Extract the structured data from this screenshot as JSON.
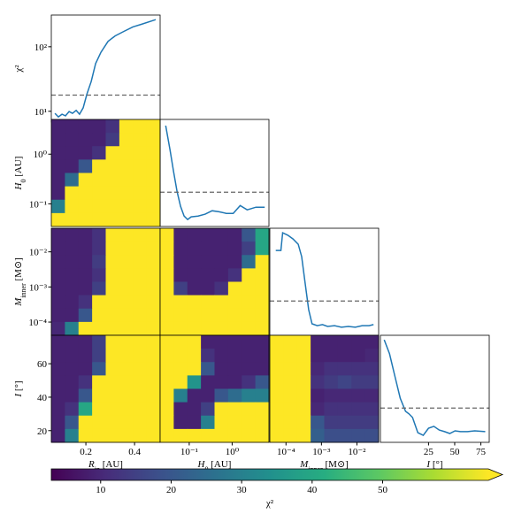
{
  "chart_data": [
    {
      "type": "line",
      "color": "#1f77b4",
      "x": [
        0.073,
        0.087,
        0.102,
        0.116,
        0.131,
        0.145,
        0.16,
        0.174,
        0.189,
        0.204,
        0.222,
        0.24,
        0.262,
        0.291,
        0.32,
        0.356,
        0.393,
        0.429,
        0.487
      ],
      "values": [
        9.3,
        8.2,
        9.0,
        8.5,
        9.9,
        9.3,
        10.3,
        9.0,
        11.3,
        18.4,
        29,
        55,
        82,
        121,
        147,
        173,
        203,
        223,
        263
      ],
      "threshold": 17.8,
      "xlim": [
        0.058,
        0.505
      ],
      "ylim": [
        6.8,
        310
      ],
      "ylog": true,
      "yticks": [
        {
          "value": 10,
          "label": "10¹"
        },
        {
          "value": 100,
          "label": "10²"
        }
      ],
      "ylabel": "χ²"
    },
    {
      "type": "heatmap",
      "xlim": [
        0.058,
        0.505
      ],
      "ylim": [
        0.035,
        5
      ],
      "ylog": true,
      "yticks": [
        {
          "value": 0.1,
          "label": "10⁻¹"
        },
        {
          "value": 1,
          "label": "10⁰"
        }
      ],
      "ylabel": {
        "base": "H",
        "sub": "0",
        "unit": " [AU]"
      },
      "z": [
        [
          9,
          9,
          9,
          9,
          12,
          70,
          70,
          70
        ],
        [
          9,
          9,
          9,
          9,
          14,
          70,
          70,
          70
        ],
        [
          9,
          9,
          9,
          12,
          70,
          70,
          70,
          70
        ],
        [
          9,
          9,
          20,
          70,
          70,
          70,
          70,
          70
        ],
        [
          9,
          25,
          70,
          70,
          70,
          70,
          70,
          70
        ],
        [
          9,
          70,
          70,
          70,
          70,
          70,
          70,
          70
        ],
        [
          30,
          70,
          70,
          70,
          70,
          70,
          70,
          70
        ],
        [
          70,
          70,
          70,
          70,
          70,
          70,
          70,
          70
        ]
      ]
    },
    {
      "type": "line",
      "color": "#1f77b4",
      "x": [
        0.0283,
        0.0358,
        0.0432,
        0.0522,
        0.063,
        0.076,
        0.0918,
        0.111,
        0.161,
        0.235,
        0.342,
        0.498,
        0.726,
        1.06,
        1.54,
        2.24,
        3.58,
        5.74
      ],
      "values": [
        42.7,
        33.6,
        25.5,
        18.0,
        12.5,
        8.9,
        7.6,
        8.6,
        8.9,
        9.6,
        10.9,
        10.5,
        9.9,
        9.9,
        12.8,
        11.2,
        12.2,
        12.2
      ],
      "threshold": 17.8,
      "xlim": [
        0.021,
        7.2
      ],
      "xlog": true,
      "ylim": [
        5,
        45
      ]
    },
    {
      "type": "heatmap",
      "xlim": [
        0.058,
        0.505
      ],
      "ylim": [
        4.2e-05,
        0.047
      ],
      "ylog": true,
      "yticks": [
        {
          "value": 0.0001,
          "label": "10⁻⁴"
        },
        {
          "value": 0.001,
          "label": "10⁻³"
        },
        {
          "value": 0.01,
          "label": "10⁻²"
        }
      ],
      "ylabel": {
        "base": "M",
        "sub": "inner",
        "unit": " [M⊙]"
      },
      "z": [
        [
          9,
          9,
          9,
          12,
          70,
          70,
          70,
          70
        ],
        [
          9,
          9,
          9,
          12,
          70,
          70,
          70,
          70
        ],
        [
          9,
          9,
          9,
          14,
          70,
          70,
          70,
          70
        ],
        [
          9,
          9,
          9,
          12,
          70,
          70,
          70,
          70
        ],
        [
          9,
          9,
          9,
          15,
          70,
          70,
          70,
          70
        ],
        [
          9,
          9,
          12,
          70,
          70,
          70,
          70,
          70
        ],
        [
          9,
          9,
          20,
          70,
          70,
          70,
          70,
          70
        ],
        [
          10,
          30,
          70,
          70,
          70,
          70,
          70,
          70
        ]
      ]
    },
    {
      "type": "heatmap",
      "xlim": [
        0.021,
        7.2
      ],
      "xlog": true,
      "ylim": [
        4.2e-05,
        0.047
      ],
      "ylog": true,
      "z": [
        [
          70,
          9,
          9,
          9,
          9,
          9,
          20,
          40
        ],
        [
          70,
          9,
          9,
          9,
          9,
          9,
          15,
          40
        ],
        [
          70,
          9,
          9,
          9,
          9,
          9,
          25,
          70
        ],
        [
          70,
          9,
          9,
          9,
          9,
          12,
          70,
          70
        ],
        [
          70,
          15,
          9,
          9,
          12,
          70,
          70,
          70
        ],
        [
          70,
          70,
          70,
          70,
          70,
          70,
          70,
          70
        ],
        [
          70,
          70,
          70,
          70,
          70,
          70,
          70,
          70
        ],
        [
          70,
          70,
          70,
          70,
          70,
          70,
          70,
          70
        ]
      ]
    },
    {
      "type": "line",
      "color": "#1f77b4",
      "x": [
        5.14e-05,
        7.19e-05,
        8.05e-05,
        0.000113,
        0.000158,
        0.000221,
        0.000277,
        0.000347,
        0.000435,
        0.000543,
        0.00076,
        0.00107,
        0.00149,
        0.00234,
        0.00366,
        0.00575,
        0.00902,
        0.0141,
        0.0221,
        0.0293
      ],
      "values": [
        36.7,
        36.7,
        43.3,
        42.4,
        41.0,
        39.0,
        34.4,
        24.5,
        14.6,
        9.3,
        8.6,
        9.0,
        8.3,
        8.6,
        8.0,
        8.3,
        8.0,
        8.6,
        8.6,
        9.0
      ],
      "threshold": 17.8,
      "xlim": [
        3.5e-05,
        0.041
      ],
      "xlog": true,
      "ylim": [
        5,
        45
      ]
    },
    {
      "type": "heatmap",
      "xlim": [
        0.058,
        0.505
      ],
      "ylim": [
        13,
        77
      ],
      "xticks": [
        0.2,
        0.4
      ],
      "xlabel": {
        "base": "R",
        "sub": "in",
        "unit": " [AU]"
      },
      "yticks": [
        20,
        40,
        60
      ],
      "ylabel": {
        "base": "I",
        "sub": "",
        "unit": " [°]"
      },
      "z": [
        [
          9,
          9,
          9,
          15,
          70,
          70,
          70,
          70
        ],
        [
          9,
          9,
          9,
          15,
          70,
          70,
          70,
          70
        ],
        [
          9,
          9,
          9,
          20,
          70,
          70,
          70,
          70
        ],
        [
          9,
          9,
          12,
          70,
          70,
          70,
          70,
          70
        ],
        [
          9,
          9,
          20,
          70,
          70,
          70,
          70,
          70
        ],
        [
          9,
          12,
          40,
          70,
          70,
          70,
          70,
          70
        ],
        [
          9,
          20,
          70,
          70,
          70,
          70,
          70,
          70
        ],
        [
          9,
          30,
          70,
          70,
          70,
          70,
          70,
          70
        ]
      ]
    },
    {
      "type": "heatmap",
      "xlim": [
        0.021,
        7.2
      ],
      "xlog": true,
      "ylim": [
        13,
        77
      ],
      "xticks": [
        {
          "value": 0.1,
          "label": "10⁻¹"
        },
        {
          "value": 1,
          "label": "10⁰"
        }
      ],
      "xlabel": {
        "base": "H",
        "sub": "0",
        "unit": " [AU]"
      },
      "z": [
        [
          70,
          70,
          70,
          9,
          9,
          9,
          9,
          9
        ],
        [
          70,
          70,
          70,
          12,
          9,
          9,
          9,
          9
        ],
        [
          70,
          70,
          70,
          20,
          9,
          9,
          9,
          9
        ],
        [
          70,
          70,
          35,
          9,
          9,
          9,
          12,
          20
        ],
        [
          70,
          30,
          9,
          9,
          20,
          25,
          30,
          30
        ],
        [
          70,
          9,
          9,
          15,
          70,
          70,
          70,
          70
        ],
        [
          70,
          9,
          9,
          30,
          70,
          70,
          70,
          70
        ],
        [
          70,
          70,
          70,
          70,
          70,
          70,
          70,
          70
        ]
      ]
    },
    {
      "type": "heatmap",
      "xlim": [
        3.5e-05,
        0.041
      ],
      "xlog": true,
      "ylim": [
        13,
        77
      ],
      "xticks": [
        {
          "value": 0.0001,
          "label": "10⁻⁴"
        },
        {
          "value": 0.001,
          "label": "10⁻³"
        },
        {
          "value": 0.01,
          "label": "10⁻²"
        }
      ],
      "xlabel": {
        "base": "M",
        "sub": "inner",
        "unit": " [M⊙]"
      },
      "z": [
        [
          70,
          70,
          70,
          9,
          9,
          9,
          9,
          9
        ],
        [
          70,
          70,
          70,
          9,
          9,
          9,
          9,
          10
        ],
        [
          70,
          70,
          70,
          10,
          12,
          12,
          12,
          12
        ],
        [
          70,
          70,
          70,
          12,
          14,
          16,
          14,
          14
        ],
        [
          70,
          70,
          70,
          9,
          10,
          10,
          10,
          10
        ],
        [
          70,
          70,
          70,
          10,
          12,
          12,
          12,
          12
        ],
        [
          70,
          70,
          70,
          20,
          14,
          14,
          14,
          14
        ],
        [
          70,
          70,
          70,
          22,
          18,
          18,
          18,
          18
        ]
      ]
    },
    {
      "type": "line",
      "color": "#1f77b4",
      "x": [
        -17.4,
        -12.3,
        -7.2,
        -2.1,
        3.0,
        6.4,
        9.7,
        14.8,
        19.9,
        25,
        30.1,
        35.2,
        40.3,
        45.3,
        50.4,
        55.5,
        62.3,
        69.1,
        79.2
      ],
      "values": [
        43.3,
        38.1,
        29.8,
        21.5,
        16.6,
        15.6,
        14.3,
        8.6,
        7.6,
        10.3,
        11.0,
        9.6,
        9.0,
        8.3,
        9.3,
        9.0,
        9.0,
        9.3,
        9.0
      ],
      "threshold": 17.8,
      "xlim": [
        -21,
        83
      ],
      "ylim": [
        5,
        45
      ],
      "xticks": [
        25,
        50,
        75
      ],
      "xlabel": {
        "base": "I",
        "sub": "",
        "unit": " [°]"
      }
    },
    {
      "type": "colorbar",
      "cmap": "viridis",
      "clim": [
        3,
        65
      ],
      "ticks": [
        10,
        20,
        30,
        40,
        50
      ],
      "label": "χ²"
    }
  ]
}
